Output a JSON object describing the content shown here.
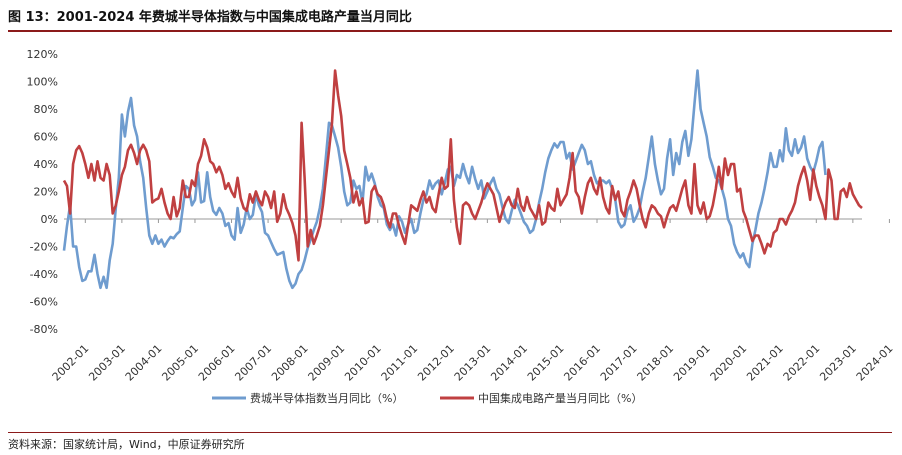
{
  "figure": {
    "title": "图 13：2001-2024 年费城半导体指数与中国集成电路产量当月同比",
    "source": "资料来源：国家统计局，Wind，中原证券研究所"
  },
  "colors": {
    "sox": "#6f9ccf",
    "ic": "#c04041",
    "axis": "#999999",
    "rule": "#8b1a1a"
  },
  "chart_data": {
    "type": "line",
    "title": "",
    "xlabel": "",
    "ylabel": "",
    "ylim": [
      -80,
      120
    ],
    "yticks": [
      -80,
      -60,
      -40,
      -20,
      0,
      20,
      40,
      60,
      80,
      100,
      120
    ],
    "ytick_labels": [
      "-80%",
      "-60%",
      "-40%",
      "-20%",
      "0%",
      "20%",
      "40%",
      "60%",
      "80%",
      "100%",
      "120%"
    ],
    "xticks": [
      "2002-01",
      "2003-01",
      "2004-01",
      "2005-01",
      "2006-01",
      "2007-01",
      "2008-01",
      "2009-01",
      "2010-01",
      "2011-01",
      "2012-01",
      "2013-01",
      "2014-01",
      "2015-01",
      "2016-01",
      "2017-01",
      "2018-01",
      "2019-01",
      "2020-01",
      "2021-01",
      "2022-01",
      "2023-01",
      "2024-01"
    ],
    "x_start": "2001-06",
    "grid": false,
    "legend": "bottom",
    "series": [
      {
        "name": "费城半导体指数当月同比（%）",
        "color": "#6f9ccf",
        "values": [
          -23,
          -5,
          10,
          -20,
          -20,
          -35,
          -45,
          -44,
          -38,
          -38,
          -26,
          -40,
          -50,
          -42,
          -50,
          -30,
          -18,
          8,
          30,
          76,
          60,
          78,
          88,
          68,
          60,
          42,
          30,
          8,
          -12,
          -18,
          -12,
          -18,
          -15,
          -20,
          -16,
          -13,
          -14,
          -11,
          -9,
          8,
          24,
          22,
          10,
          14,
          34,
          12,
          13,
          34,
          16,
          6,
          3,
          8,
          4,
          -5,
          -3,
          -12,
          -15,
          8,
          -10,
          -4,
          8,
          0,
          3,
          18,
          10,
          5,
          -10,
          -12,
          -17,
          -22,
          -26,
          -25,
          -24,
          -36,
          -45,
          -50,
          -47,
          -40,
          -37,
          -30,
          -21,
          -15,
          -8,
          -2,
          8,
          22,
          45,
          70,
          68,
          60,
          52,
          38,
          20,
          10,
          12,
          28,
          22,
          24,
          12,
          38,
          28,
          33,
          26,
          16,
          10,
          8,
          -4,
          -8,
          -4,
          -12,
          2,
          -2,
          -10,
          -4,
          0,
          -10,
          -8,
          4,
          14,
          18,
          28,
          22,
          26,
          28,
          18,
          26,
          36,
          38,
          24,
          32,
          30,
          40,
          32,
          26,
          38,
          29,
          22,
          28,
          15,
          20,
          26,
          30,
          22,
          18,
          8,
          0,
          -3,
          6,
          14,
          10,
          4,
          -2,
          -5,
          -10,
          -8,
          0,
          12,
          22,
          34,
          44,
          50,
          55,
          52,
          56,
          56,
          44,
          48,
          36,
          42,
          48,
          54,
          50,
          40,
          42,
          32,
          26,
          28,
          28,
          26,
          28,
          22,
          14,
          -2,
          -6,
          -4,
          6,
          10,
          -2,
          2,
          8,
          20,
          30,
          45,
          60,
          40,
          28,
          18,
          22,
          44,
          58,
          32,
          48,
          40,
          56,
          64,
          46,
          58,
          84,
          108,
          80,
          70,
          60,
          45,
          38,
          30,
          28,
          22,
          14,
          0,
          -5,
          -18,
          -24,
          -28,
          -25,
          -32,
          -35,
          -18,
          -8,
          4,
          12,
          22,
          34,
          48,
          38,
          38,
          50,
          42,
          66,
          50,
          46,
          58,
          48,
          52,
          60,
          44,
          38,
          34,
          42,
          52,
          56,
          32
        ]
      },
      {
        "name": "中国集成电路产量当月同比（%）",
        "color": "#c04041",
        "values": [
          28,
          24,
          4,
          40,
          50,
          53,
          48,
          40,
          30,
          40,
          28,
          42,
          30,
          28,
          40,
          32,
          4,
          10,
          20,
          32,
          38,
          50,
          54,
          48,
          40,
          50,
          54,
          50,
          42,
          12,
          14,
          15,
          22,
          12,
          4,
          0,
          16,
          2,
          8,
          28,
          16,
          16,
          28,
          24,
          40,
          46,
          58,
          52,
          42,
          40,
          34,
          38,
          32,
          22,
          26,
          20,
          16,
          30,
          15,
          8,
          6,
          18,
          12,
          20,
          14,
          10,
          20,
          16,
          8,
          20,
          -2,
          4,
          18,
          8,
          3,
          -3,
          -12,
          -30,
          70,
          30,
          -20,
          -8,
          -18,
          -12,
          -5,
          10,
          30,
          50,
          70,
          108,
          90,
          75,
          50,
          40,
          30,
          12,
          20,
          10,
          15,
          -3,
          -2,
          20,
          24,
          18,
          16,
          10,
          0,
          -6,
          4,
          4,
          -5,
          -12,
          -18,
          -4,
          10,
          8,
          6,
          14,
          20,
          12,
          16,
          8,
          5,
          18,
          30,
          22,
          24,
          58,
          14,
          -6,
          -18,
          10,
          12,
          10,
          4,
          0,
          6,
          12,
          20,
          26,
          22,
          18,
          8,
          -2,
          6,
          12,
          16,
          10,
          8,
          22,
          10,
          6,
          16,
          8,
          4,
          0,
          10,
          -4,
          -2,
          12,
          8,
          6,
          22,
          10,
          14,
          18,
          30,
          48,
          20,
          16,
          4,
          16,
          26,
          30,
          22,
          18,
          30,
          16,
          8,
          4,
          24,
          14,
          20,
          6,
          2,
          14,
          20,
          28,
          22,
          10,
          0,
          -6,
          4,
          10,
          8,
          4,
          2,
          -6,
          2,
          8,
          10,
          6,
          14,
          22,
          28,
          10,
          4,
          40,
          10,
          4,
          12,
          0,
          2,
          10,
          22,
          38,
          22,
          44,
          32,
          40,
          40,
          20,
          22,
          6,
          0,
          -8,
          -16,
          -12,
          -12,
          -18,
          -25,
          -18,
          -20,
          -10,
          -8,
          0,
          0,
          -4,
          2,
          6,
          12,
          24,
          32,
          38,
          28,
          14,
          36,
          24,
          16,
          10,
          0,
          36,
          28,
          0,
          0,
          20,
          22,
          16,
          26,
          18,
          14,
          10,
          8
        ]
      }
    ]
  }
}
